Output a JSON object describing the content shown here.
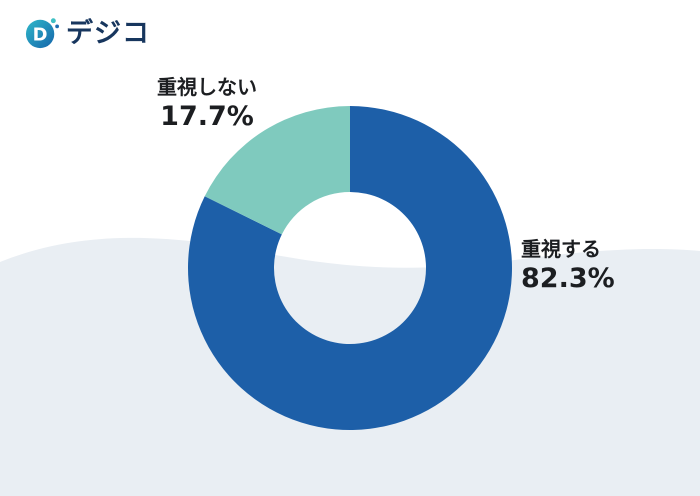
{
  "logo": {
    "text": "デジコ",
    "icon_letter": "D"
  },
  "colors": {
    "background_wave": "#e9eef3",
    "logo_gradient_top": "#2fb8c9",
    "logo_gradient_bottom": "#1565ab",
    "logo_dot_teal": "#3fc0c4",
    "logo_dot_blue": "#1d6cb0",
    "text_dark": "#1c1e21"
  },
  "chart_data": {
    "type": "pie",
    "subtype": "donut",
    "title": "",
    "labels": [
      "重視する",
      "重視しない"
    ],
    "values": [
      82.3,
      17.7
    ],
    "colors": [
      "#1d5fa8",
      "#7fcabe"
    ],
    "start_angle_deg": 0,
    "direction": "clockwise",
    "inner_radius_ratio": 0.47,
    "legend": "none",
    "annotations": [
      {
        "label": "重視する",
        "value": "82.3%",
        "position": "right"
      },
      {
        "label": "重視しない",
        "value": "17.7%",
        "position": "top-left"
      }
    ]
  }
}
